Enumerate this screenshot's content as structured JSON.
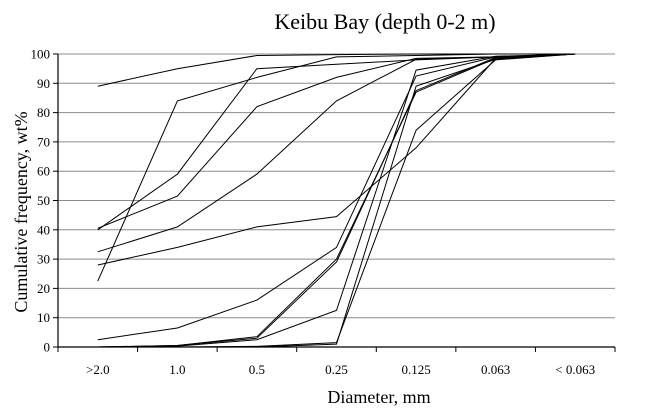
{
  "chart_data": {
    "type": "line",
    "title": "Keibu Bay (depth 0-2 m)",
    "xlabel": "Diameter, mm",
    "ylabel": "Cumulative frequency, wt%",
    "categories": [
      ">2.0",
      "1.0",
      "0.5",
      "0.25",
      "0.125",
      "0.063",
      "< 0.063"
    ],
    "ylim": [
      0,
      100
    ],
    "y_ticks": [
      "0",
      "10",
      "20",
      "30",
      "40",
      "50",
      "60",
      "70",
      "80",
      "90",
      "100"
    ],
    "grid": "horizontal",
    "series": [
      {
        "values": [
          89,
          95,
          99.5,
          99.8,
          100,
          100,
          100
        ]
      },
      {
        "values": [
          40,
          59,
          95,
          96.5,
          98,
          99,
          100
        ]
      },
      {
        "values": [
          22.5,
          84,
          92,
          99,
          99.5,
          100,
          100
        ]
      },
      {
        "values": [
          40.5,
          51.5,
          82,
          92,
          98.5,
          99,
          100
        ]
      },
      {
        "values": [
          32.5,
          41,
          59,
          84,
          98.2,
          99,
          100
        ]
      },
      {
        "values": [
          28,
          34,
          41,
          44.5,
          68,
          98.5,
          100
        ]
      },
      {
        "values": [
          2.5,
          6.5,
          16,
          34,
          92.5,
          99,
          100
        ]
      },
      {
        "values": [
          0,
          0.5,
          3.5,
          30,
          87,
          98.5,
          100
        ]
      },
      {
        "values": [
          0,
          0.5,
          3,
          29,
          87.5,
          98.8,
          100
        ]
      },
      {
        "values": [
          0,
          0.3,
          2.5,
          12.5,
          94.5,
          99.2,
          100
        ]
      },
      {
        "values": [
          0,
          0,
          0.2,
          1.5,
          74,
          98,
          100
        ]
      },
      {
        "values": [
          0,
          0,
          0,
          1,
          89,
          98.2,
          100
        ]
      }
    ]
  }
}
